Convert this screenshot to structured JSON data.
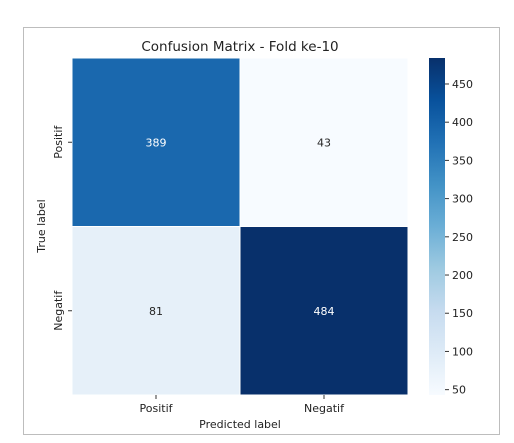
{
  "chart_data": {
    "type": "heatmap",
    "title": "Confusion Matrix - Fold ke-10",
    "xlabel": "Predicted label",
    "ylabel": "True label",
    "x_categories": [
      "Positif",
      "Negatif"
    ],
    "y_categories": [
      "Positif",
      "Negatif"
    ],
    "values": [
      [
        389,
        43
      ],
      [
        81,
        484
      ]
    ],
    "colormap": "Blues",
    "colorbar": {
      "range": [
        43,
        484
      ],
      "ticks": [
        50,
        100,
        150,
        200,
        250,
        300,
        350,
        400,
        450
      ],
      "tick_labels": [
        "50",
        "100",
        "150",
        "200",
        "250",
        "300",
        "350",
        "400",
        "450"
      ]
    },
    "grid": false,
    "annotations": true
  }
}
